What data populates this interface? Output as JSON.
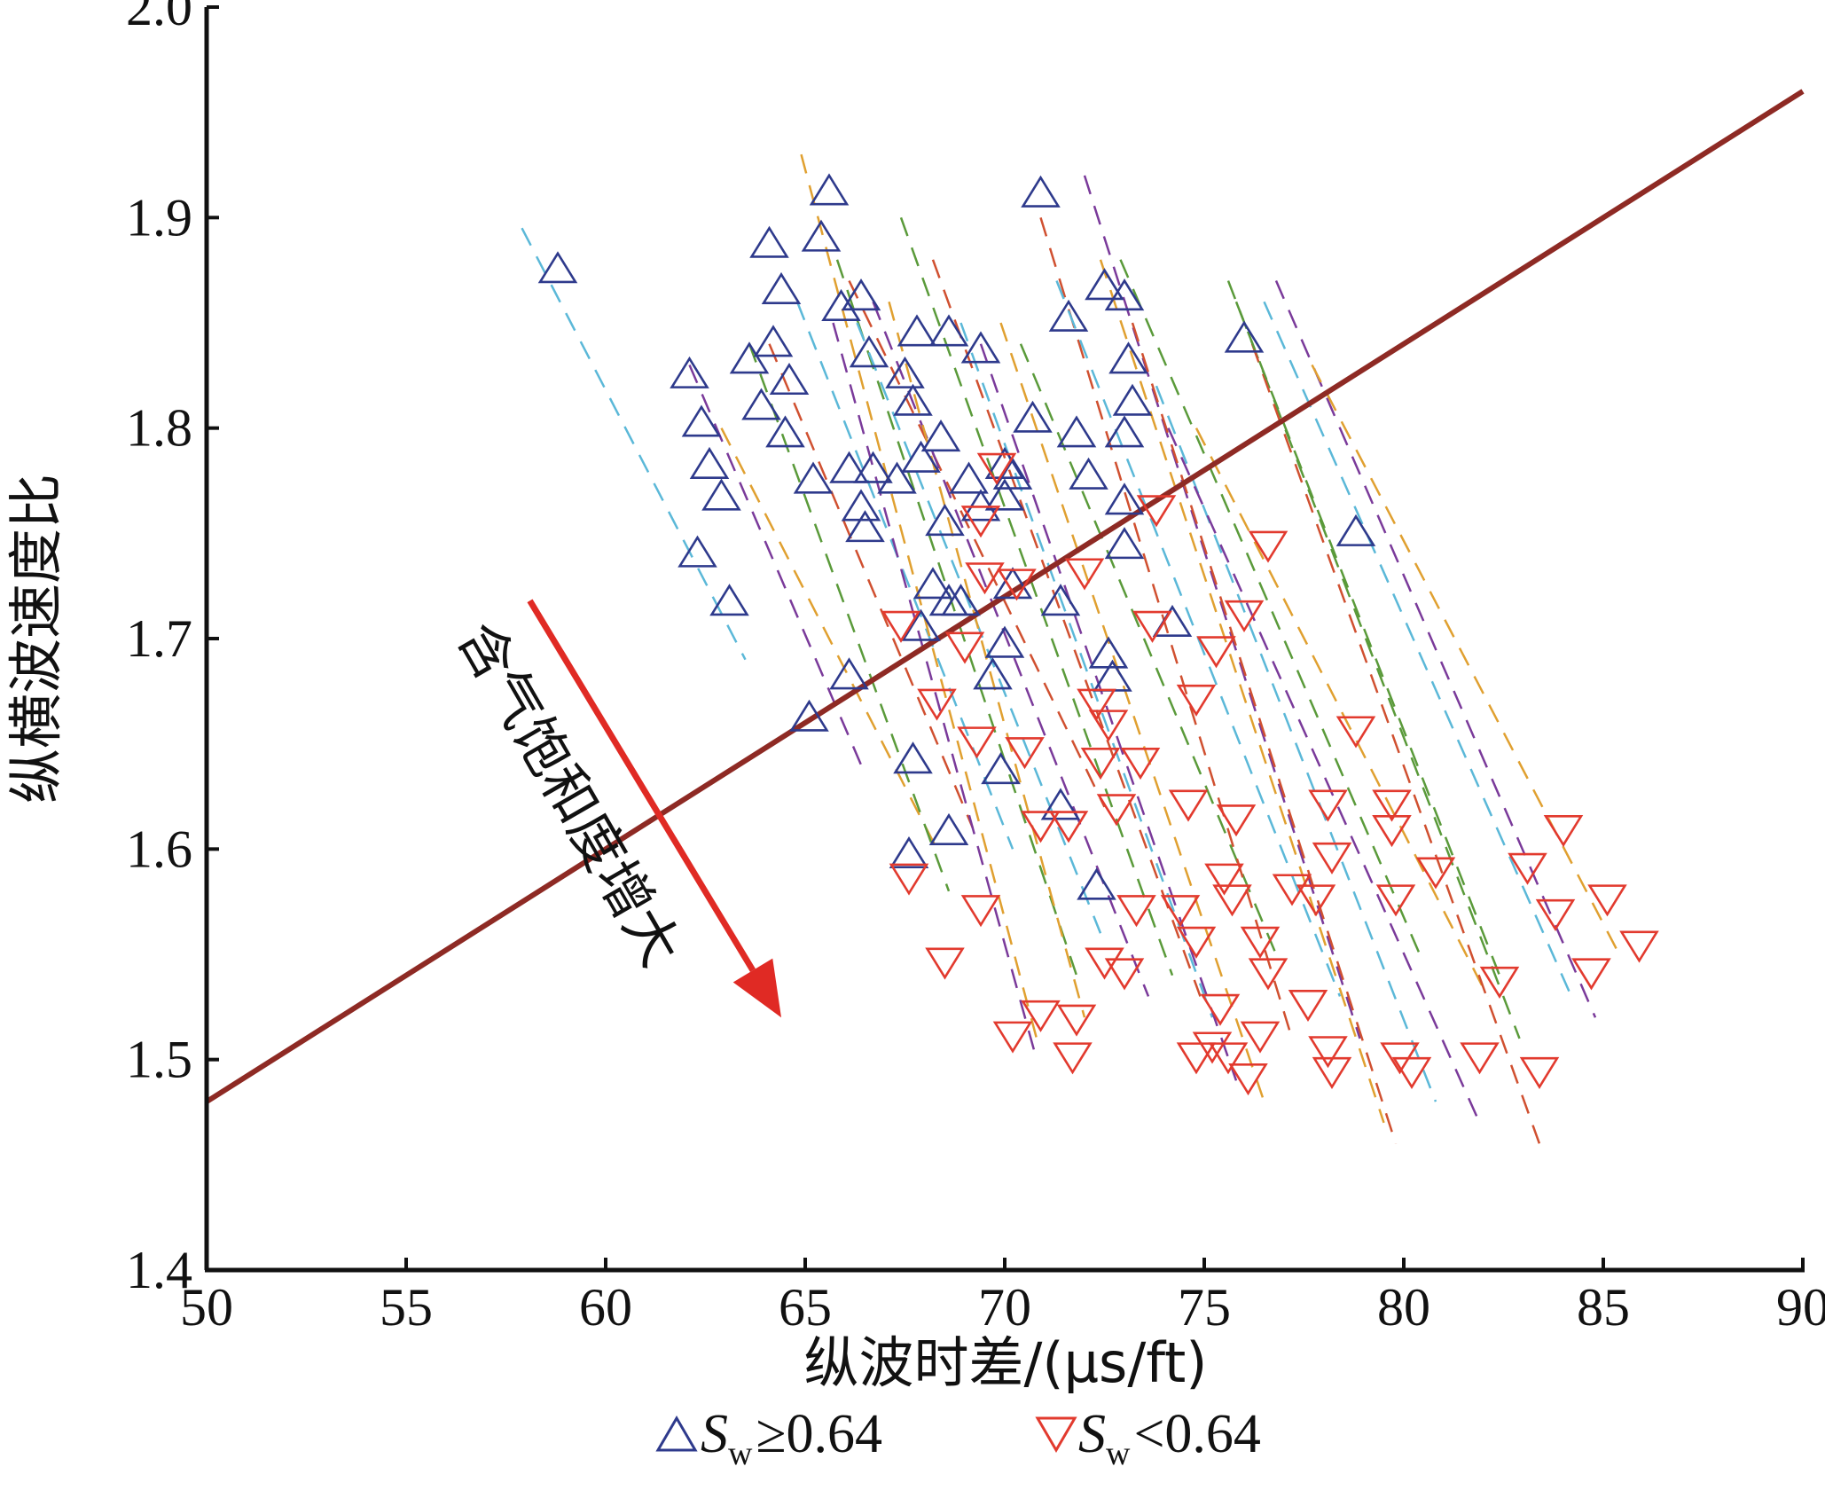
{
  "chart_data": {
    "type": "scatter",
    "title": "",
    "xlabel": "纵波时差/(μs/ft)",
    "ylabel": "纵横波速度比",
    "xlim": [
      50,
      90
    ],
    "ylim": [
      1.4,
      2.0
    ],
    "xticks": [
      "50",
      "55",
      "60",
      "65",
      "70",
      "75",
      "80",
      "85",
      "90"
    ],
    "yticks": [
      "1.4",
      "1.5",
      "1.6",
      "1.7",
      "1.8",
      "1.9",
      "2.0"
    ],
    "grid": false,
    "legend_position": "bottom",
    "annotation": "含气饱和度增大",
    "colors": {
      "sw_high": "#2e3a8c",
      "sw_low": "#e23a2e",
      "divider": "#8e2a24",
      "arrow": "#e02a24",
      "dashes": [
        "#5bb8d8",
        "#7a3a9a",
        "#e0a030",
        "#5a9a3a",
        "#d05030"
      ]
    },
    "divider_line": {
      "x": [
        50,
        90
      ],
      "y": [
        1.48,
        1.96
      ]
    },
    "arrow": {
      "from": [
        58.1,
        1.718
      ],
      "to": [
        64.4,
        1.52
      ]
    },
    "series": [
      {
        "name": "Sw≥0.64",
        "legend_main": "S",
        "legend_sub": "w",
        "legend_rel": "≥0.64",
        "marker": "triangle-up",
        "points": [
          [
            58.8,
            1.875
          ],
          [
            62.1,
            1.825
          ],
          [
            62.4,
            1.802
          ],
          [
            62.6,
            1.782
          ],
          [
            62.9,
            1.767
          ],
          [
            62.3,
            1.74
          ],
          [
            63.1,
            1.717
          ],
          [
            64.1,
            1.887
          ],
          [
            63.6,
            1.832
          ],
          [
            63.9,
            1.81
          ],
          [
            64.2,
            1.84
          ],
          [
            64.4,
            1.865
          ],
          [
            64.6,
            1.822
          ],
          [
            64.5,
            1.797
          ],
          [
            65.6,
            1.912
          ],
          [
            65.4,
            1.89
          ],
          [
            65.9,
            1.857
          ],
          [
            66.4,
            1.862
          ],
          [
            66.6,
            1.835
          ],
          [
            65.2,
            1.775
          ],
          [
            66.1,
            1.78
          ],
          [
            66.7,
            1.78
          ],
          [
            66.4,
            1.762
          ],
          [
            66.5,
            1.752
          ],
          [
            67.3,
            1.775
          ],
          [
            67.5,
            1.825
          ],
          [
            67.7,
            1.812
          ],
          [
            67.8,
            1.845
          ],
          [
            68.6,
            1.845
          ],
          [
            68.4,
            1.795
          ],
          [
            67.9,
            1.785
          ],
          [
            69.1,
            1.775
          ],
          [
            69.4,
            1.837
          ],
          [
            66.1,
            1.682
          ],
          [
            65.1,
            1.662
          ],
          [
            67.7,
            1.642
          ],
          [
            67.6,
            1.597
          ],
          [
            68.6,
            1.608
          ],
          [
            68.5,
            1.755
          ],
          [
            68.2,
            1.725
          ],
          [
            68.6,
            1.717
          ],
          [
            68.9,
            1.717
          ],
          [
            67.9,
            1.705
          ],
          [
            69.4,
            1.762
          ],
          [
            70.0,
            1.782
          ],
          [
            70.2,
            1.777
          ],
          [
            70.7,
            1.804
          ],
          [
            70.9,
            1.911
          ],
          [
            71.6,
            1.852
          ],
          [
            71.8,
            1.797
          ],
          [
            72.5,
            1.867
          ],
          [
            72.1,
            1.777
          ],
          [
            73.0,
            1.862
          ],
          [
            73.1,
            1.832
          ],
          [
            73.2,
            1.812
          ],
          [
            73.0,
            1.797
          ],
          [
            73.0,
            1.765
          ],
          [
            73.0,
            1.744
          ],
          [
            74.2,
            1.707
          ],
          [
            70.0,
            1.767
          ],
          [
            70.2,
            1.725
          ],
          [
            71.4,
            1.717
          ],
          [
            70.0,
            1.697
          ],
          [
            72.6,
            1.692
          ],
          [
            72.7,
            1.681
          ],
          [
            69.7,
            1.682
          ],
          [
            69.9,
            1.637
          ],
          [
            71.4,
            1.62
          ],
          [
            72.3,
            1.582
          ],
          [
            76.0,
            1.842
          ],
          [
            78.8,
            1.75
          ]
        ]
      },
      {
        "name": "Sw<0.64",
        "legend_main": "S",
        "legend_sub": "w",
        "legend_rel": "<0.64",
        "marker": "triangle-down",
        "points": [
          [
            67.4,
            1.707
          ],
          [
            67.6,
            1.587
          ],
          [
            68.3,
            1.67
          ],
          [
            68.5,
            1.547
          ],
          [
            69.0,
            1.697
          ],
          [
            69.3,
            1.652
          ],
          [
            69.4,
            1.572
          ],
          [
            69.5,
            1.73
          ],
          [
            69.4,
            1.757
          ],
          [
            69.8,
            1.782
          ],
          [
            70.3,
            1.727
          ],
          [
            70.2,
            1.512
          ],
          [
            70.5,
            1.647
          ],
          [
            70.9,
            1.522
          ],
          [
            70.9,
            1.612
          ],
          [
            71.6,
            1.612
          ],
          [
            72.0,
            1.732
          ],
          [
            71.8,
            1.52
          ],
          [
            71.7,
            1.502
          ],
          [
            72.3,
            1.67
          ],
          [
            72.6,
            1.66
          ],
          [
            72.4,
            1.642
          ],
          [
            72.8,
            1.62
          ],
          [
            72.5,
            1.547
          ],
          [
            73.0,
            1.542
          ],
          [
            73.3,
            1.572
          ],
          [
            73.4,
            1.642
          ],
          [
            73.8,
            1.762
          ],
          [
            73.7,
            1.707
          ],
          [
            74.4,
            1.572
          ],
          [
            74.8,
            1.672
          ],
          [
            74.6,
            1.622
          ],
          [
            74.8,
            1.557
          ],
          [
            74.8,
            1.502
          ],
          [
            75.2,
            1.507
          ],
          [
            75.3,
            1.695
          ],
          [
            75.4,
            1.525
          ],
          [
            75.5,
            1.587
          ],
          [
            75.7,
            1.577
          ],
          [
            75.6,
            1.502
          ],
          [
            75.8,
            1.615
          ],
          [
            76.0,
            1.712
          ],
          [
            76.4,
            1.557
          ],
          [
            76.6,
            1.542
          ],
          [
            76.4,
            1.512
          ],
          [
            76.1,
            1.492
          ],
          [
            76.6,
            1.745
          ],
          [
            77.2,
            1.582
          ],
          [
            77.8,
            1.577
          ],
          [
            77.6,
            1.527
          ],
          [
            78.1,
            1.505
          ],
          [
            78.2,
            1.495
          ],
          [
            78.1,
            1.622
          ],
          [
            78.2,
            1.597
          ],
          [
            78.8,
            1.657
          ],
          [
            79.7,
            1.622
          ],
          [
            79.7,
            1.61
          ],
          [
            79.8,
            1.577
          ],
          [
            79.9,
            1.502
          ],
          [
            80.2,
            1.495
          ],
          [
            80.8,
            1.59
          ],
          [
            81.9,
            1.502
          ],
          [
            82.4,
            1.538
          ],
          [
            83.1,
            1.592
          ],
          [
            83.4,
            1.495
          ],
          [
            83.8,
            1.57
          ],
          [
            84.0,
            1.61
          ],
          [
            84.7,
            1.542
          ],
          [
            85.1,
            1.577
          ],
          [
            85.9,
            1.555
          ]
        ]
      }
    ],
    "dashed_lines": [
      [
        57.9,
        1.895,
        63.5,
        1.69
      ],
      [
        62.1,
        1.83,
        66.4,
        1.64
      ],
      [
        62.9,
        1.8,
        68.3,
        1.6
      ],
      [
        63.6,
        1.84,
        68.6,
        1.58
      ],
      [
        64.1,
        1.84,
        69.2,
        1.61
      ],
      [
        64.8,
        1.86,
        70.2,
        1.6
      ],
      [
        65.7,
        1.85,
        70.8,
        1.5
      ],
      [
        64.9,
        1.93,
        70.8,
        1.51
      ],
      [
        65.8,
        1.88,
        71.8,
        1.54
      ],
      [
        66.1,
        1.87,
        72.5,
        1.62
      ],
      [
        66.3,
        1.85,
        72.4,
        1.56
      ],
      [
        66.7,
        1.86,
        73.6,
        1.53
      ],
      [
        67.1,
        1.86,
        72.0,
        1.52
      ],
      [
        67.4,
        1.9,
        74.2,
        1.54
      ],
      [
        68.2,
        1.88,
        74.9,
        1.53
      ],
      [
        68.9,
        1.85,
        75.2,
        1.52
      ],
      [
        69.4,
        1.84,
        75.8,
        1.49
      ],
      [
        69.9,
        1.85,
        76.5,
        1.48
      ],
      [
        70.4,
        1.84,
        76.8,
        1.55
      ],
      [
        70.9,
        1.9,
        77.2,
        1.51
      ],
      [
        71.3,
        1.87,
        78.4,
        1.53
      ],
      [
        72.0,
        1.92,
        78.9,
        1.51
      ],
      [
        72.4,
        1.88,
        79.5,
        1.47
      ],
      [
        72.9,
        1.88,
        80.4,
        1.55
      ],
      [
        73.2,
        1.85,
        79.8,
        1.46
      ],
      [
        73.8,
        1.82,
        80.8,
        1.48
      ],
      [
        74.1,
        1.8,
        81.9,
        1.47
      ],
      [
        74.8,
        1.8,
        82.1,
        1.53
      ],
      [
        75.6,
        1.87,
        82.9,
        1.51
      ],
      [
        76.2,
        1.84,
        83.4,
        1.46
      ],
      [
        76.5,
        1.86,
        84.2,
        1.53
      ],
      [
        76.8,
        1.87,
        84.8,
        1.52
      ],
      [
        77.7,
        1.83,
        85.4,
        1.55
      ],
      [
        75.8,
        1.86,
        82.4,
        1.54
      ]
    ]
  }
}
